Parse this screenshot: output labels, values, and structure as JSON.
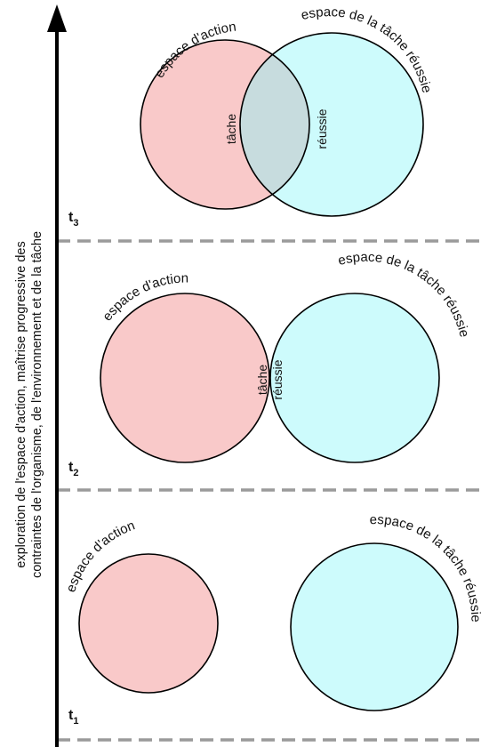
{
  "colors": {
    "action_space": "#f9c9c9",
    "task_space": "#cdfbfc",
    "overlap": "#c7dcde",
    "outline": "#000000",
    "divider": "#9a9a9a",
    "axis": "#000000"
  },
  "axis": {
    "line1": "exploration de l'espace d'action, maîtrise progressive des",
    "line2": "contraintes de l'organisme, de l'environnement et de la tâche"
  },
  "panels": [
    {
      "time_main": "t",
      "time_sub": "3",
      "action_label": "espace d'action",
      "task_label": "espace de la tâche réussie",
      "overlap_left": "tâche",
      "overlap_right": "réussie",
      "overlap": "large"
    },
    {
      "time_main": "t",
      "time_sub": "2",
      "action_label": "espace d'action",
      "task_label": "espace de la tâche réussie",
      "overlap_left": "tâche",
      "overlap_right": "réussie",
      "overlap": "small"
    },
    {
      "time_main": "t",
      "time_sub": "1",
      "action_label": "espace d'action",
      "task_label": "espace de la tâche réussie",
      "overlap": "none"
    }
  ]
}
